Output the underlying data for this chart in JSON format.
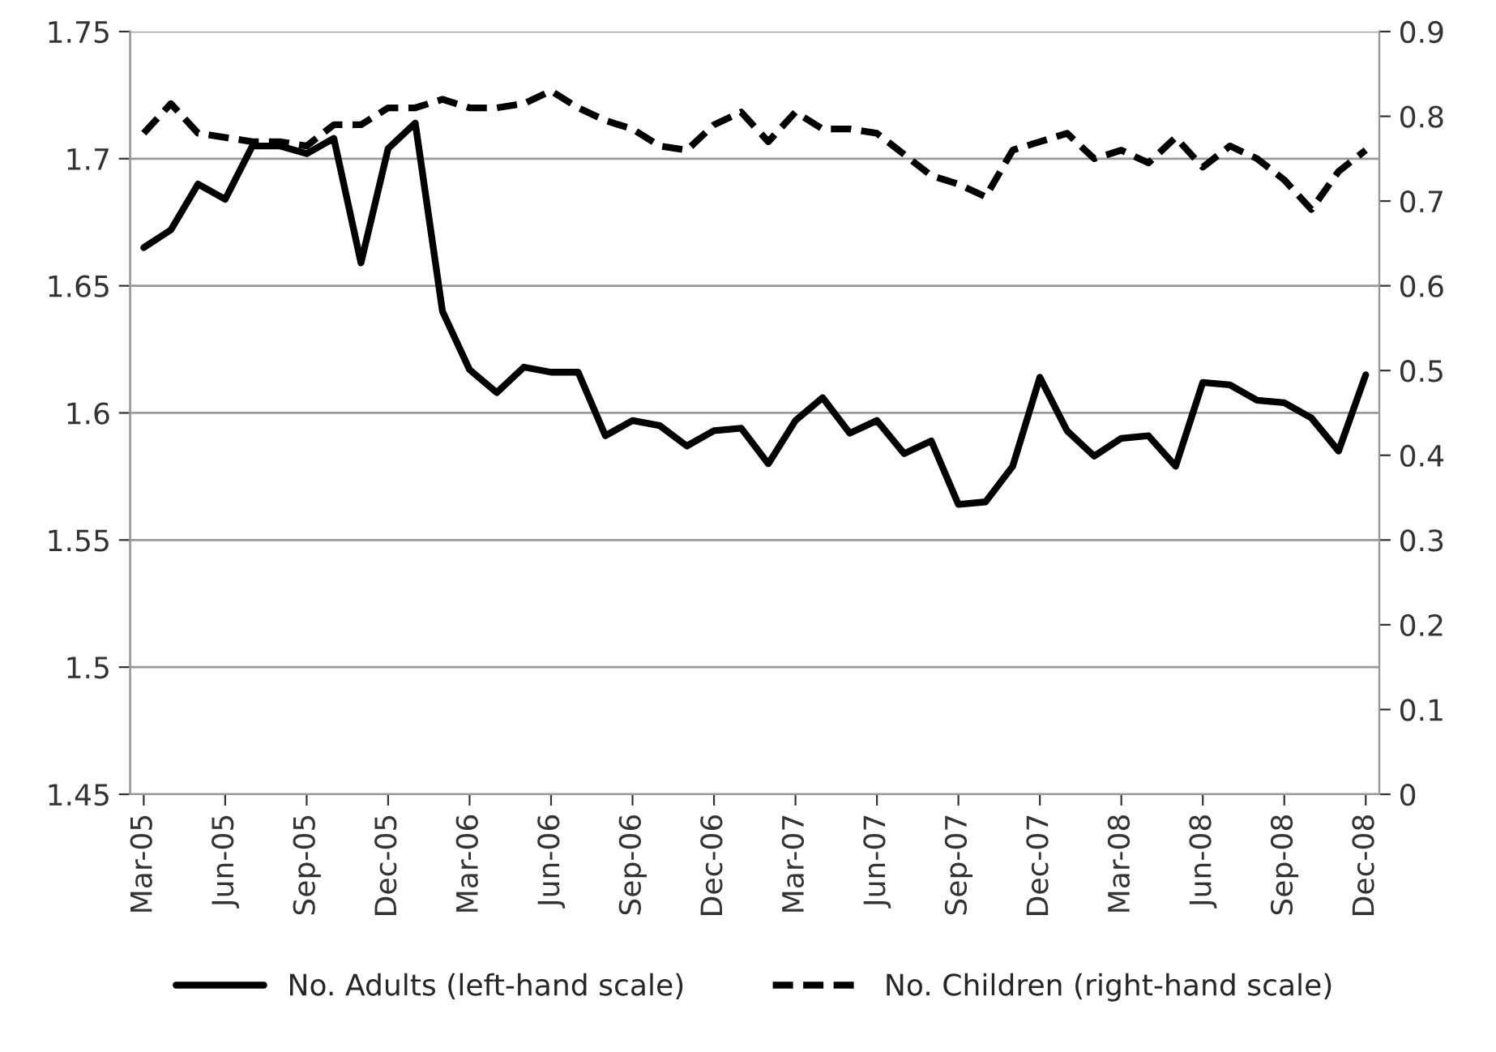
{
  "chart_data": {
    "type": "line",
    "categories": [
      "Mar-05",
      null,
      null,
      "Jun-05",
      null,
      null,
      "Sep-05",
      null,
      null,
      "Dec-05",
      null,
      null,
      "Mar-06",
      null,
      null,
      "Jun-06",
      null,
      null,
      "Sep-06",
      null,
      null,
      "Dec-06",
      null,
      null,
      "Mar-07",
      null,
      null,
      "Jun-07",
      null,
      null,
      "Sep-07",
      null,
      null,
      "Dec-07",
      null,
      null,
      "Mar-08",
      null,
      null,
      "Jun-08",
      null,
      null,
      "Sep-08",
      null,
      null,
      "Dec-08"
    ],
    "series": [
      {
        "name": "No. Adults (left-hand scale)",
        "color": "#000000",
        "line_style": "solid",
        "values": [
          1.665,
          1.672,
          1.69,
          1.684,
          1.705,
          1.705,
          1.702,
          1.708,
          1.659,
          1.704,
          1.714,
          1.64,
          1.617,
          1.608,
          1.618,
          1.616,
          1.616,
          1.591,
          1.597,
          1.595,
          1.587,
          1.593,
          1.594,
          1.58,
          1.597,
          1.606,
          1.592,
          1.597,
          1.584,
          1.589,
          1.564,
          1.565,
          1.579,
          1.614,
          1.593,
          1.583,
          1.59,
          1.591,
          1.579,
          1.612,
          1.611,
          1.605,
          1.604,
          1.598,
          1.585,
          1.615
        ]
      },
      {
        "name": "No. Children (right-hand scale)",
        "color": "#000000",
        "line_style": "dashed",
        "axis": "y2",
        "values": [
          0.78,
          0.815,
          0.78,
          0.775,
          0.77,
          0.77,
          0.765,
          0.79,
          0.79,
          0.81,
          0.81,
          0.82,
          0.81,
          0.81,
          0.815,
          0.83,
          0.81,
          0.795,
          0.785,
          0.765,
          0.76,
          0.79,
          0.805,
          0.77,
          0.805,
          0.785,
          0.785,
          0.78,
          0.755,
          0.73,
          0.72,
          0.705,
          0.76,
          0.77,
          0.78,
          0.75,
          0.76,
          0.745,
          0.775,
          0.74,
          0.765,
          0.75,
          0.725,
          0.69,
          0.735,
          0.76
        ]
      }
    ],
    "ylim": [
      1.45,
      1.75
    ],
    "yticks": [
      1.45,
      1.5,
      1.55,
      1.6,
      1.65,
      1.7,
      1.75
    ],
    "y2lim": [
      0,
      0.9
    ],
    "y2ticks": [
      0,
      0.1,
      0.2,
      0.3,
      0.4,
      0.5,
      0.6,
      0.7,
      0.8,
      0.9
    ],
    "grid": "y",
    "legend": "bottom"
  }
}
